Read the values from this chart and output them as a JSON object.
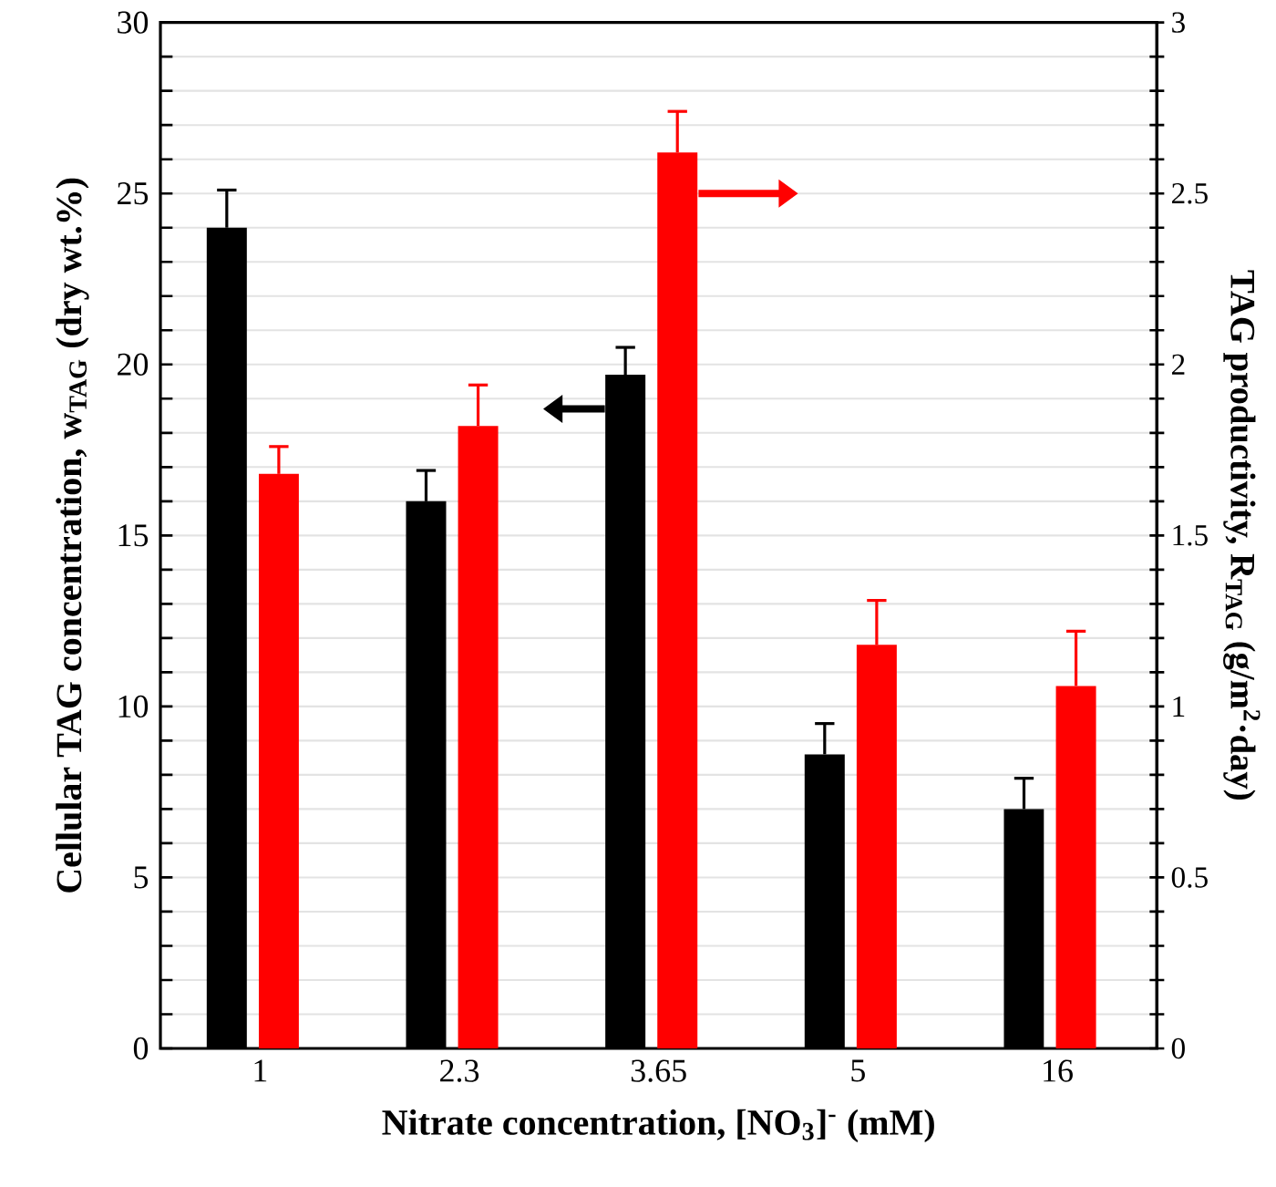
{
  "chart_data": {
    "type": "bar",
    "xlabel": "Nitrate concentration, [NO$_{3}$]$^{-}$ (mM)",
    "ylabel": "Cellular TAG concentration, w$_{TAG}$ (dry wt.%)",
    "y2label": "TAG productivity, R$_{TAG}$ (g/m$^{2}$·day)",
    "categories": [
      "1",
      "2.3",
      "3.65",
      "5",
      "16"
    ],
    "series": [
      {
        "color": "#000000",
        "values": [
          24.0,
          16.0,
          19.7,
          8.6,
          7.0
        ],
        "errors": [
          [
            24.0,
            25.1
          ],
          [
            16.0,
            16.9
          ],
          [
            19.7,
            20.5
          ],
          [
            8.6,
            9.5
          ],
          [
            7.0,
            7.9
          ]
        ]
      },
      {
        "color": "#ff0000",
        "axis": "y2",
        "values": [
          1.68,
          1.82,
          2.62,
          1.18,
          1.06
        ],
        "errors": [
          [
            1.68,
            1.76
          ],
          [
            1.82,
            1.94
          ],
          [
            2.62,
            2.74
          ],
          [
            1.18,
            1.31
          ],
          [
            1.06,
            1.22
          ]
        ]
      }
    ],
    "ylim": [
      0,
      30
    ],
    "yticks": [
      0,
      {
        "value": 1,
        "label": null
      },
      {
        "value": 2,
        "label": null
      },
      {
        "value": 3,
        "label": null
      },
      {
        "value": 4,
        "label": null
      },
      5,
      {
        "value": 6,
        "label": null
      },
      {
        "value": 7,
        "label": null
      },
      {
        "value": 8,
        "label": null
      },
      {
        "value": 9,
        "label": null
      },
      10,
      {
        "value": 11,
        "label": null
      },
      {
        "value": 12,
        "label": null
      },
      {
        "value": 13,
        "label": null
      },
      {
        "value": 14,
        "label": null
      },
      15,
      {
        "value": 16,
        "label": null
      },
      {
        "value": 17,
        "label": null
      },
      {
        "value": 18,
        "label": null
      },
      {
        "value": 19,
        "label": null
      },
      20,
      {
        "value": 21,
        "label": null
      },
      {
        "value": 22,
        "label": null
      },
      {
        "value": 23,
        "label": null
      },
      {
        "value": 24,
        "label": null
      },
      25,
      {
        "value": 26,
        "label": null
      },
      {
        "value": 27,
        "label": null
      },
      {
        "value": 28,
        "label": null
      },
      {
        "value": 29,
        "label": null
      },
      30
    ],
    "y2lim": [
      0,
      3
    ],
    "y2ticks": [
      0,
      {
        "value": 0.1,
        "label": null
      },
      {
        "value": 0.2,
        "label": null
      },
      {
        "value": 0.3,
        "label": null
      },
      {
        "value": 0.4,
        "label": null
      },
      0.5,
      {
        "value": 0.6,
        "label": null
      },
      {
        "value": 0.7,
        "label": null
      },
      {
        "value": 0.8,
        "label": null
      },
      {
        "value": 0.9,
        "label": null
      },
      1,
      {
        "value": 1.1,
        "label": null
      },
      {
        "value": 1.2,
        "label": null
      },
      {
        "value": 1.3,
        "label": null
      },
      {
        "value": 1.4,
        "label": null
      },
      1.5,
      {
        "value": 1.6,
        "label": null
      },
      {
        "value": 1.7,
        "label": null
      },
      {
        "value": 1.8,
        "label": null
      },
      {
        "value": 1.9,
        "label": null
      },
      2,
      {
        "value": 2.1,
        "label": null
      },
      {
        "value": 2.2,
        "label": null
      },
      {
        "value": 2.3,
        "label": null
      },
      {
        "value": 2.4,
        "label": null
      },
      2.5,
      {
        "value": 2.6,
        "label": null
      },
      {
        "value": 2.7,
        "label": null
      },
      {
        "value": 2.8,
        "label": null
      },
      {
        "value": 2.9,
        "label": null
      },
      3
    ],
    "grid": "y"
  }
}
